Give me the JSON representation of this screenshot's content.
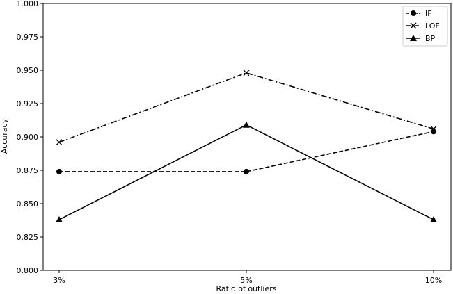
{
  "chart_data": {
    "type": "line",
    "xlabel": "Ratio of outliers",
    "ylabel": "Accuracy",
    "categories": [
      "3%",
      "5%",
      "10%"
    ],
    "ylim": [
      0.8,
      1.0
    ],
    "yticks": [
      "0.800",
      "0.825",
      "0.850",
      "0.875",
      "0.900",
      "0.925",
      "0.950",
      "0.975",
      "1.000"
    ],
    "grid": false,
    "legend_position": "top-right",
    "series": [
      {
        "name": "IF",
        "values": [
          0.874,
          0.874,
          0.904
        ],
        "marker": "circle",
        "line_style": "dashed",
        "color": "#000000"
      },
      {
        "name": "LOF",
        "values": [
          0.896,
          0.948,
          0.906
        ],
        "marker": "x",
        "line_style": "dashdot",
        "color": "#000000"
      },
      {
        "name": "BP",
        "values": [
          0.838,
          0.909,
          0.838
        ],
        "marker": "triangle",
        "line_style": "solid",
        "color": "#000000"
      }
    ]
  }
}
